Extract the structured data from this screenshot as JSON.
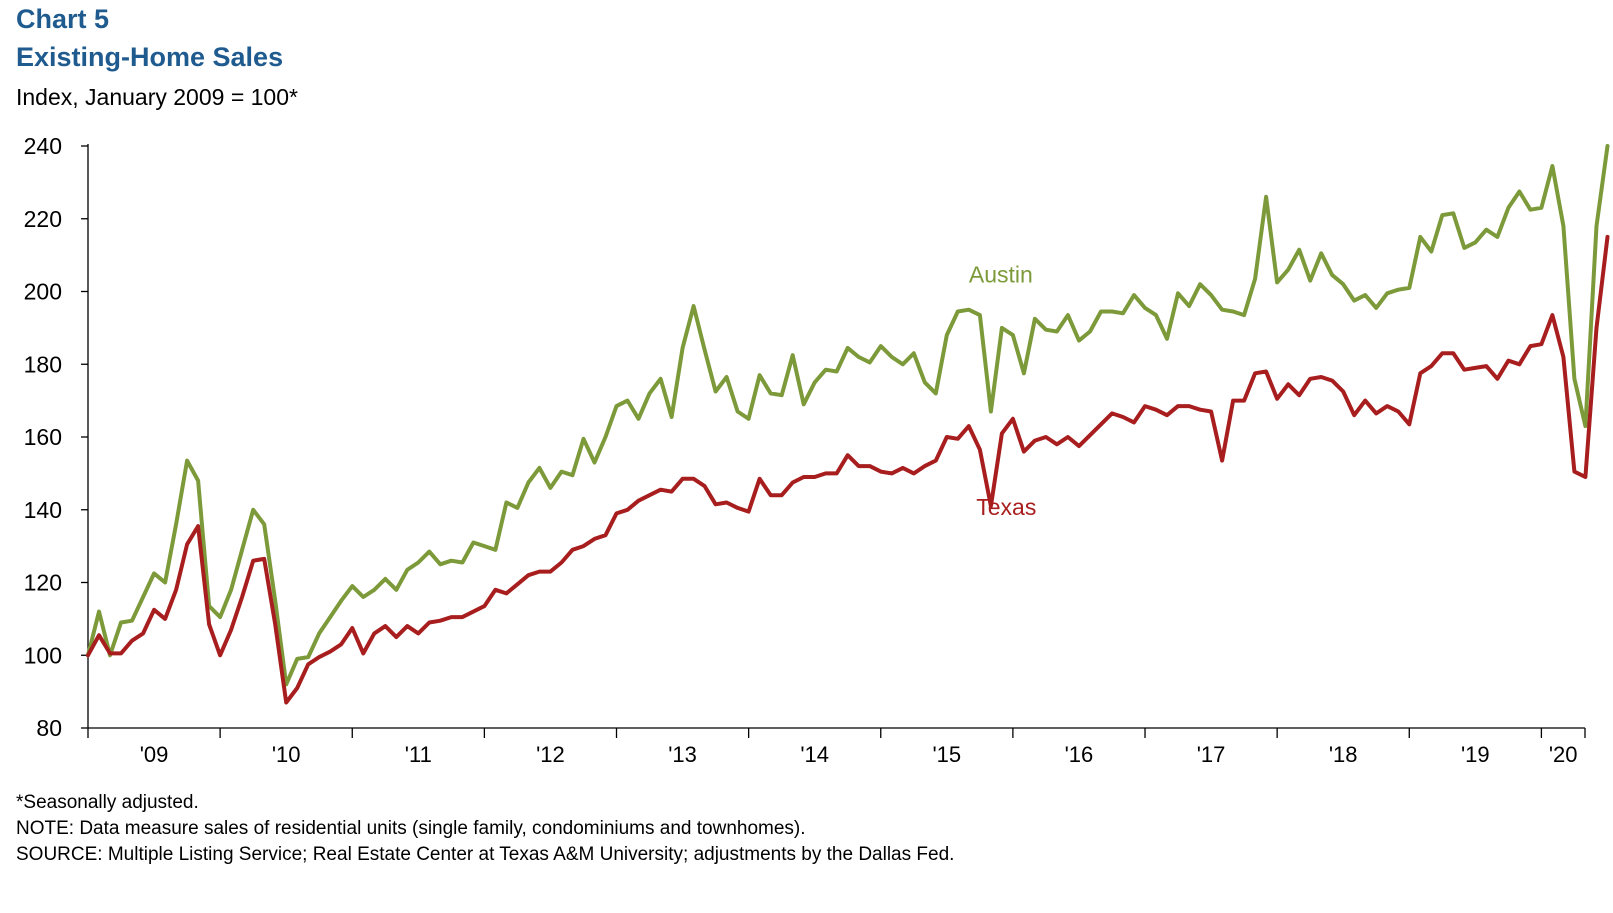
{
  "header": {
    "chart_label": "Chart 5",
    "title": "Existing-Home Sales",
    "subtitle": "Index, January 2009 = 100*"
  },
  "colors": {
    "austin": "#7d9a3a",
    "texas": "#a81e1e",
    "axis": "#000000"
  },
  "chart_data": {
    "type": "line",
    "title": "Existing-Home Sales",
    "ylabel": "Index, January 2009 = 100*",
    "xlabel": "",
    "ylim": [
      80,
      240
    ],
    "yticks": [
      80,
      100,
      120,
      140,
      160,
      180,
      200,
      220,
      240
    ],
    "xlim": [
      2009.0,
      2020.33
    ],
    "xtick_labels": [
      "'09",
      "'10",
      "'11",
      "'12",
      "'13",
      "'14",
      "'15",
      "'16",
      "'17",
      "'18",
      "'19",
      "'20"
    ],
    "x_start": "2009-01",
    "frequency": "monthly",
    "grid": false,
    "legend": "inline labels",
    "series": [
      {
        "name": "Austin",
        "label_position": "above line, near 2016",
        "values": [
          100,
          112,
          100,
          109,
          109.5,
          116,
          122.5,
          120,
          136,
          153.5,
          148,
          113.5,
          110.5,
          118,
          129,
          140,
          136,
          115,
          92,
          99,
          99.5,
          106,
          110.5,
          115,
          119,
          116,
          118,
          121,
          118,
          123.5,
          125.5,
          128.5,
          125,
          126,
          125.5,
          131,
          130,
          129,
          142,
          140.5,
          147.5,
          151.5,
          146,
          150.5,
          149.5,
          159.5,
          153,
          160,
          168.5,
          170,
          165,
          172,
          176,
          165.5,
          184.5,
          196,
          184,
          172.5,
          176.5,
          167,
          165,
          177,
          172,
          171.5,
          182.5,
          169,
          175,
          178.5,
          178,
          184.5,
          182,
          180.5,
          185,
          182,
          180,
          183,
          175,
          172,
          188,
          194.5,
          195,
          193.5,
          167,
          190,
          188,
          177.5,
          192.5,
          189.5,
          189,
          193.5,
          186.5,
          189,
          194.5,
          194.5,
          194,
          199,
          195.5,
          193.5,
          187,
          199.5,
          196,
          202,
          199,
          195,
          194.5,
          193.5,
          203.5,
          226,
          202.5,
          206,
          211.5,
          203,
          210.5,
          204.5,
          202,
          197.5,
          199,
          195.5,
          199.5,
          200.5,
          201,
          215,
          211,
          221,
          221.5,
          212,
          213.5,
          217,
          215,
          223,
          227.5,
          222.5,
          223,
          234.5,
          218,
          176,
          163,
          218,
          240
        ]
      },
      {
        "name": "Texas",
        "label_position": "below line, near 2016",
        "values": [
          100,
          105.5,
          100.5,
          100.5,
          104,
          106,
          112.5,
          110,
          118,
          130.5,
          135.5,
          108.5,
          100,
          107,
          116,
          126,
          126.5,
          108.5,
          87,
          91,
          97.5,
          99.5,
          101,
          103,
          107.5,
          100.5,
          106,
          108,
          105,
          108,
          106,
          109,
          109.5,
          110.5,
          110.5,
          112,
          113.5,
          118,
          117,
          119.5,
          122,
          123,
          123,
          125.5,
          129,
          130,
          132,
          133,
          139,
          140,
          142.5,
          144,
          145.5,
          145,
          148.5,
          148.5,
          146.5,
          141.5,
          142,
          140.5,
          139.5,
          148.5,
          144,
          144,
          147.5,
          149,
          149,
          150,
          150,
          155,
          152,
          152,
          150.5,
          150,
          151.5,
          150,
          152,
          153.5,
          160,
          159.5,
          163,
          156.5,
          141,
          161,
          165,
          156,
          159,
          160,
          158,
          160,
          157.5,
          160.5,
          163.5,
          166.5,
          165.5,
          164,
          168.5,
          167.5,
          166,
          168.5,
          168.5,
          167.5,
          167,
          153.5,
          170,
          170,
          177.5,
          178,
          170.5,
          174.5,
          171.5,
          176,
          176.5,
          175.5,
          172.5,
          166,
          170,
          166.5,
          168.5,
          167,
          163.5,
          177.5,
          179.5,
          183,
          183,
          178.5,
          179,
          179.5,
          176,
          181,
          180,
          185,
          185.5,
          193.5,
          182,
          150.5,
          149,
          190,
          215
        ]
      }
    ]
  },
  "footnotes": {
    "seasonal": "*Seasonally adjusted.",
    "note": "NOTE: Data measure sales of residential units (single family, condominiums and townhomes).",
    "source": "SOURCE: Multiple Listing Service; Real Estate Center at Texas A&M University; adjustments by the Dallas Fed."
  }
}
